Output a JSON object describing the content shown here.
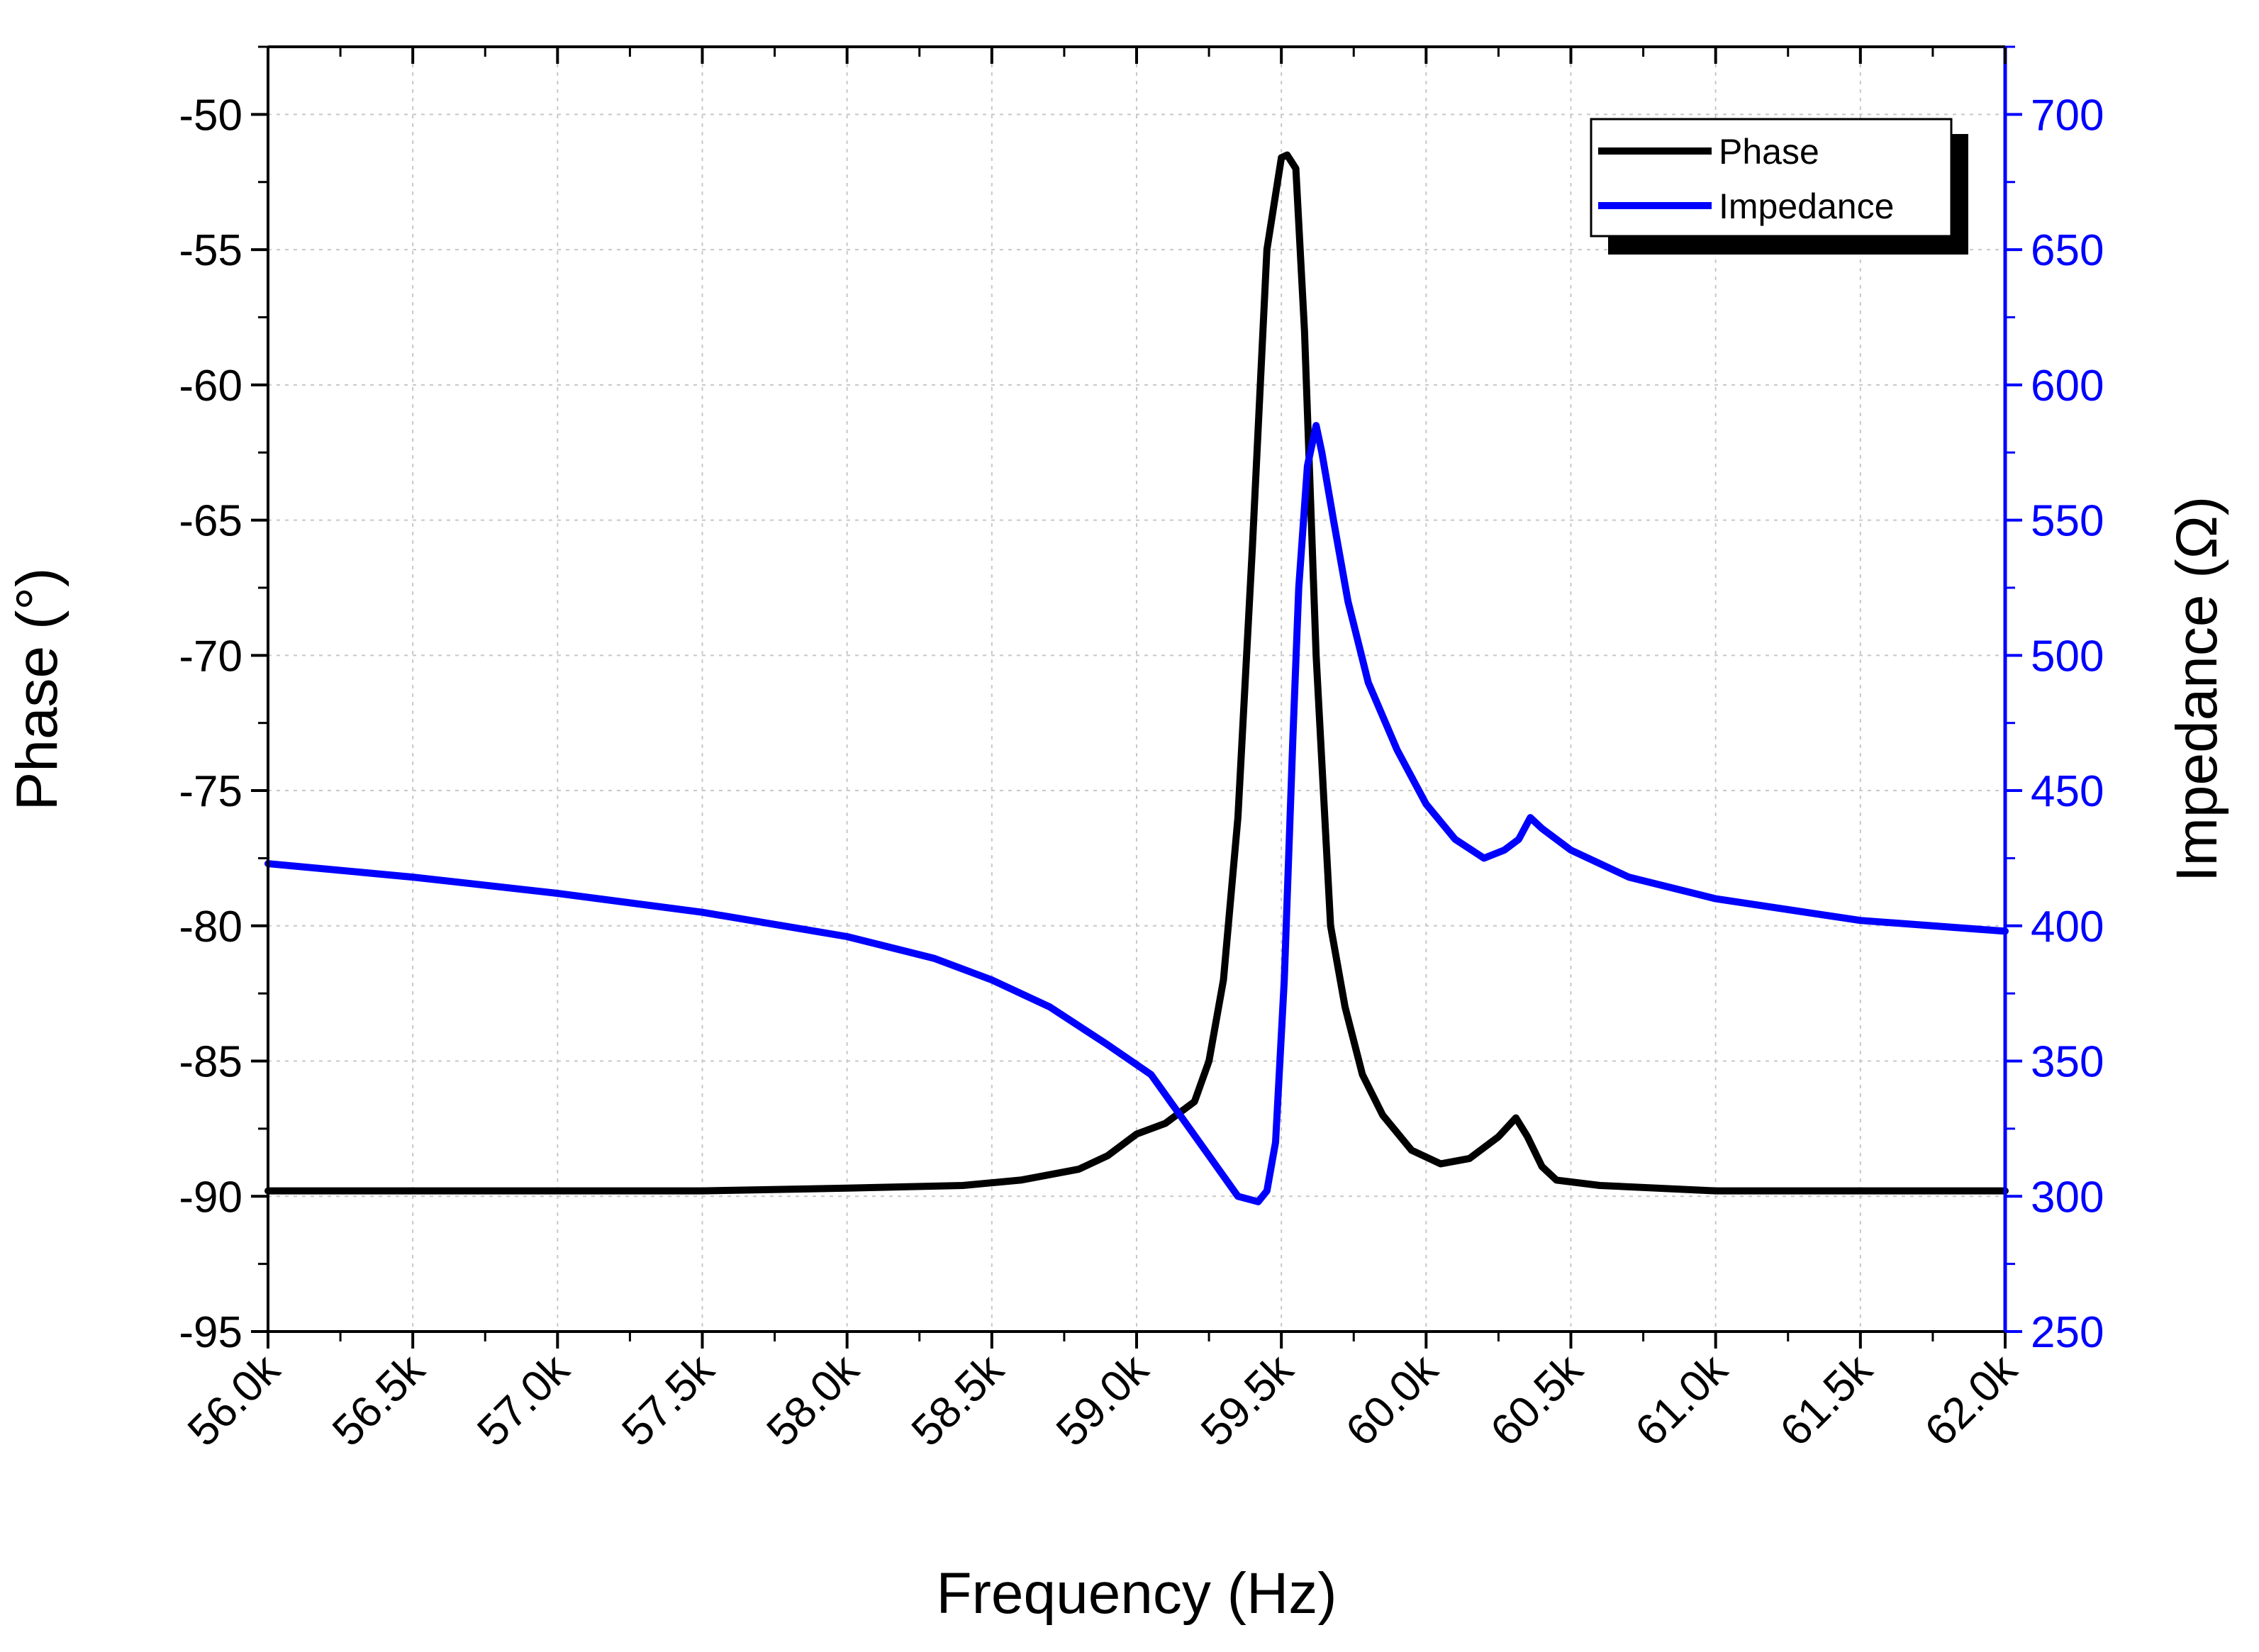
{
  "chart_data": {
    "type": "line",
    "title": "",
    "xlabel": "Frequency (Hz)",
    "ylabel_left": "Phase (°)",
    "ylabel_right": "Impedance (Ω)",
    "xlim": [
      56000,
      62000
    ],
    "ylim_left": [
      -95,
      -47.5
    ],
    "ylim_right": [
      250,
      725
    ],
    "x_ticks": [
      56000,
      56500,
      57000,
      57500,
      58000,
      58500,
      59000,
      59500,
      60000,
      60500,
      61000,
      61500,
      62000
    ],
    "x_tick_labels": [
      "56.0k",
      "56.5k",
      "57.0k",
      "57.5k",
      "58.0k",
      "58.5k",
      "59.0k",
      "59.5k",
      "60.0k",
      "60.5k",
      "61.0k",
      "61.5k",
      "62.0k"
    ],
    "y_left_ticks": [
      -95,
      -90,
      -85,
      -80,
      -75,
      -70,
      -65,
      -60,
      -55,
      -50
    ],
    "y_left_tick_labels": [
      "-95",
      "-90",
      "-85",
      "-80",
      "-75",
      "-70",
      "-65",
      "-60",
      "-55",
      "-50"
    ],
    "y_right_ticks": [
      250,
      300,
      350,
      400,
      450,
      500,
      550,
      600,
      650,
      700
    ],
    "y_right_tick_labels": [
      "250",
      "300",
      "350",
      "400",
      "450",
      "500",
      "550",
      "600",
      "650",
      "700"
    ],
    "grid": true,
    "legend": {
      "position": "top-right",
      "entries": [
        "Phase",
        "Impedance"
      ]
    },
    "colors": {
      "phase": "#000000",
      "impedance": "#0000ff",
      "right_axis": "#0000ff",
      "grid": "#c8c8c8"
    },
    "series": [
      {
        "name": "Phase",
        "axis": "left",
        "color": "#000000",
        "x": [
          56000,
          56500,
          57000,
          57500,
          58000,
          58400,
          58600,
          58800,
          58900,
          59000,
          59100,
          59200,
          59250,
          59300,
          59350,
          59400,
          59450,
          59500,
          59520,
          59550,
          59580,
          59620,
          59670,
          59720,
          59780,
          59850,
          59950,
          60050,
          60150,
          60250,
          60310,
          60350,
          60400,
          60450,
          60600,
          61000,
          61500,
          62000
        ],
        "y": [
          -89.8,
          -89.8,
          -89.8,
          -89.8,
          -89.7,
          -89.6,
          -89.4,
          -89.0,
          -88.5,
          -87.7,
          -87.3,
          -86.5,
          -85.0,
          -82.0,
          -76.0,
          -66.0,
          -55.0,
          -51.6,
          -51.5,
          -52.0,
          -58.0,
          -70.0,
          -80.0,
          -83.0,
          -85.5,
          -87.0,
          -88.3,
          -88.8,
          -88.6,
          -87.8,
          -87.1,
          -87.8,
          -88.9,
          -89.4,
          -89.6,
          -89.8,
          -89.8,
          -89.8
        ]
      },
      {
        "name": "Impedance",
        "axis": "right",
        "color": "#0000ff",
        "x": [
          56000,
          56500,
          57000,
          57500,
          58000,
          58300,
          58500,
          58700,
          58900,
          59050,
          59150,
          59250,
          59350,
          59420,
          59450,
          59480,
          59510,
          59540,
          59560,
          59590,
          59620,
          59640,
          59680,
          59730,
          59800,
          59900,
          60000,
          60100,
          60200,
          60270,
          60320,
          60360,
          60400,
          60500,
          60700,
          61000,
          61500,
          62000
        ],
        "y": [
          423,
          418,
          412,
          405,
          396,
          388,
          380,
          370,
          356,
          345,
          330,
          315,
          300,
          298,
          302,
          320,
          380,
          470,
          525,
          570,
          585,
          575,
          550,
          520,
          490,
          465,
          445,
          432,
          425,
          428,
          432,
          440,
          436,
          428,
          418,
          410,
          402,
          398
        ]
      }
    ]
  }
}
